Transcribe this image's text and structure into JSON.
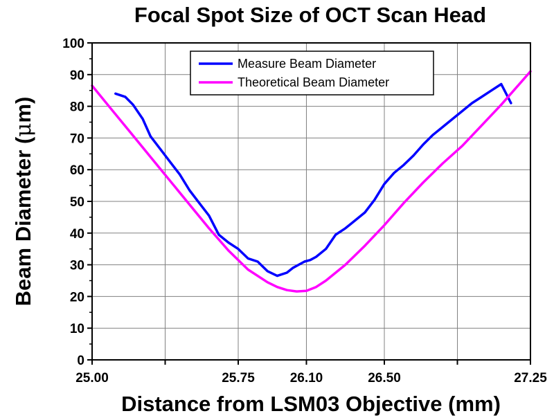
{
  "chart_data": {
    "type": "line",
    "title": "Focal Spot Size of OCT Scan Head",
    "xlabel": "Distance from LSM03 Objective (mm)",
    "ylabel_main": "Beam Diameter (",
    "ylabel_symbol": "μ",
    "ylabel_end": "m)",
    "xlim": [
      25.0,
      27.25
    ],
    "ylim": [
      0,
      100
    ],
    "x_ticks": [
      25.0,
      25.75,
      26.1,
      26.5,
      27.25
    ],
    "x_tick_labels": [
      "25.00",
      "25.75",
      "26.10",
      "26.50",
      "27.25"
    ],
    "x_gridlines": [
      25.375,
      25.75,
      26.1,
      26.5,
      26.875
    ],
    "y_ticks": [
      0,
      10,
      20,
      30,
      40,
      50,
      60,
      70,
      80,
      90,
      100
    ],
    "grid": true,
    "legend_position": "top-center",
    "series": [
      {
        "name": "Measure Beam Diameter",
        "color": "#0000ff",
        "x": [
          25.12,
          25.17,
          25.21,
          25.26,
          25.3,
          25.35,
          25.4,
          25.45,
          25.5,
          25.55,
          25.6,
          25.65,
          25.7,
          25.75,
          25.8,
          25.85,
          25.9,
          25.95,
          26.0,
          26.03,
          26.06,
          26.09,
          26.12,
          26.15,
          26.2,
          26.25,
          26.3,
          26.35,
          26.4,
          26.45,
          26.5,
          26.55,
          26.6,
          26.65,
          26.7,
          26.75,
          26.8,
          26.85,
          26.9,
          26.95,
          27.0,
          27.05,
          27.1,
          27.15
        ],
        "y": [
          84,
          83,
          80.5,
          76,
          70.5,
          66.5,
          62.5,
          58.5,
          53.5,
          49.5,
          45.5,
          39.5,
          37,
          35,
          32,
          31,
          28,
          26.5,
          27.5,
          29,
          30,
          31,
          31.5,
          32.5,
          35,
          39.5,
          41.5,
          44,
          46.5,
          50.5,
          55.5,
          59,
          61.5,
          64.5,
          68,
          71,
          73.5,
          76,
          78.5,
          81,
          83,
          85,
          87,
          81
        ]
      },
      {
        "name": "Theoretical Beam Diameter",
        "color": "#ff00ff",
        "x": [
          25.0,
          25.1,
          25.2,
          25.3,
          25.4,
          25.5,
          25.6,
          25.7,
          25.8,
          25.9,
          25.95,
          26.0,
          26.05,
          26.1,
          26.15,
          26.2,
          26.3,
          26.4,
          26.5,
          26.6,
          26.7,
          26.8,
          26.9,
          27.0,
          27.1,
          27.2,
          27.25
        ],
        "y": [
          86.5,
          79,
          71.5,
          64,
          56.5,
          49,
          41.5,
          34.5,
          28.5,
          24.5,
          23,
          22,
          21.6,
          21.8,
          23,
          25,
          30,
          36,
          42.5,
          49.5,
          56,
          62,
          67.5,
          74,
          80.5,
          87.5,
          91
        ]
      }
    ]
  }
}
